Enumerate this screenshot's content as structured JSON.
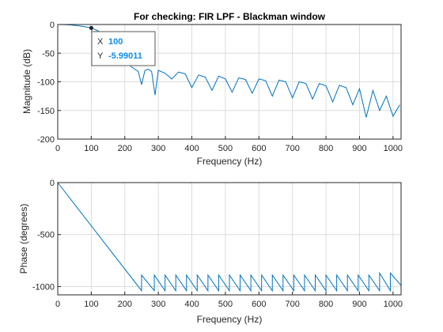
{
  "chart_data": [
    {
      "type": "line",
      "title": "For checking: FIR LPF - Blackman window",
      "xlabel": "Frequency (Hz)",
      "ylabel": "Magnitude (dB)",
      "xlim": [
        0,
        1024
      ],
      "ylim": [
        -200,
        0
      ],
      "xticks": [
        "0",
        "100",
        "200",
        "300",
        "400",
        "500",
        "600",
        "700",
        "800",
        "900",
        "1000"
      ],
      "yticks": [
        "0",
        "-50",
        "-100",
        "-150",
        "-200"
      ],
      "grid": true,
      "series": [
        {
          "x": [
            0,
            20,
            40,
            60,
            80,
            100,
            120,
            140,
            160,
            180,
            200,
            220,
            240,
            250,
            260,
            270,
            280,
            290,
            300,
            320,
            340,
            360,
            380,
            400,
            420,
            440,
            460,
            480,
            500,
            520,
            540,
            560,
            580,
            600,
            620,
            640,
            660,
            680,
            700,
            720,
            740,
            760,
            780,
            800,
            820,
            840,
            860,
            880,
            900,
            920,
            940,
            960,
            980,
            1000,
            1020
          ],
          "y": [
            0,
            -0.2,
            -0.8,
            -2,
            -3.8,
            -6,
            -11,
            -20,
            -32,
            -48,
            -62,
            -74,
            -82,
            -105,
            -80,
            -78,
            -82,
            -123,
            -80,
            -85,
            -95,
            -83,
            -86,
            -110,
            -88,
            -92,
            -115,
            -90,
            -95,
            -118,
            -93,
            -96,
            -120,
            -95,
            -98,
            -125,
            -97,
            -100,
            -128,
            -100,
            -103,
            -130,
            -103,
            -107,
            -135,
            -106,
            -110,
            -140,
            -112,
            -162,
            -115,
            -150,
            -125,
            -160,
            -140
          ]
        }
      ],
      "datatip": {
        "x_label": "X",
        "x_value": "100",
        "y_label": "Y",
        "y_value": "-5.99011",
        "x": 100,
        "y": -5.99011
      }
    },
    {
      "type": "line",
      "title": "",
      "xlabel": "Frequency (Hz)",
      "ylabel": "Phase (degrees)",
      "xlim": [
        0,
        1024
      ],
      "ylim": [
        -1080,
        0
      ],
      "xticks": [
        "0",
        "100",
        "200",
        "300",
        "400",
        "500",
        "600",
        "700",
        "800",
        "900",
        "1000"
      ],
      "yticks": [
        "0",
        "-500",
        "-1000"
      ],
      "grid": true,
      "series": [
        {
          "x": [
            0,
            250,
            250,
            288,
            288,
            320,
            320,
            352,
            352,
            384,
            384,
            416,
            416,
            448,
            448,
            480,
            480,
            512,
            512,
            544,
            544,
            576,
            576,
            608,
            608,
            640,
            640,
            672,
            672,
            704,
            704,
            736,
            736,
            768,
            768,
            800,
            800,
            832,
            832,
            864,
            864,
            896,
            896,
            928,
            928,
            960,
            960,
            992,
            992,
            1024
          ],
          "y": [
            0,
            -1040,
            -890,
            -1040,
            -890,
            -1040,
            -890,
            -1040,
            -890,
            -1040,
            -890,
            -1040,
            -890,
            -1040,
            -890,
            -1040,
            -890,
            -1040,
            -890,
            -1040,
            -890,
            -1040,
            -890,
            -1040,
            -890,
            -1040,
            -890,
            -1040,
            -890,
            -1040,
            -890,
            -1040,
            -890,
            -1040,
            -890,
            -1040,
            -890,
            -1040,
            -890,
            -1040,
            -890,
            -1040,
            -890,
            -1040,
            -890,
            -1040,
            -870,
            -1040,
            -870,
            -990
          ]
        }
      ]
    }
  ]
}
